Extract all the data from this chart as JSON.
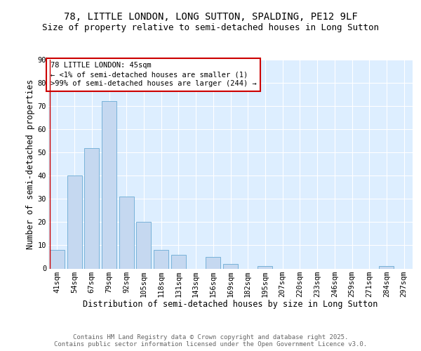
{
  "title1": "78, LITTLE LONDON, LONG SUTTON, SPALDING, PE12 9LF",
  "title2": "Size of property relative to semi-detached houses in Long Sutton",
  "xlabel": "Distribution of semi-detached houses by size in Long Sutton",
  "ylabel": "Number of semi-detached properties",
  "categories": [
    "41sqm",
    "54sqm",
    "67sqm",
    "79sqm",
    "92sqm",
    "105sqm",
    "118sqm",
    "131sqm",
    "143sqm",
    "156sqm",
    "169sqm",
    "182sqm",
    "195sqm",
    "207sqm",
    "220sqm",
    "233sqm",
    "246sqm",
    "259sqm",
    "271sqm",
    "284sqm",
    "297sqm"
  ],
  "values": [
    8,
    40,
    52,
    72,
    31,
    20,
    8,
    6,
    0,
    5,
    2,
    0,
    1,
    0,
    0,
    0,
    0,
    0,
    0,
    1,
    0
  ],
  "bar_color": "#c5d8f0",
  "bar_edge_color": "#6aaad4",
  "annotation_text": "78 LITTLE LONDON: 45sqm\n← <1% of semi-detached houses are smaller (1)\n>99% of semi-detached houses are larger (244) →",
  "annotation_box_color": "#ffffff",
  "annotation_box_edge_color": "#cc0000",
  "red_line_color": "#cc0000",
  "ylim": [
    0,
    90
  ],
  "yticks": [
    0,
    10,
    20,
    30,
    40,
    50,
    60,
    70,
    80,
    90
  ],
  "fig_bg_color": "#ffffff",
  "plot_bg_color": "#ddeeff",
  "grid_color": "#ffffff",
  "footer_text": "Contains HM Land Registry data © Crown copyright and database right 2025.\nContains public sector information licensed under the Open Government Licence v3.0.",
  "title_fontsize": 10,
  "subtitle_fontsize": 9,
  "axis_label_fontsize": 8.5,
  "tick_fontsize": 7.5,
  "annotation_fontsize": 7.5,
  "footer_fontsize": 6.5
}
